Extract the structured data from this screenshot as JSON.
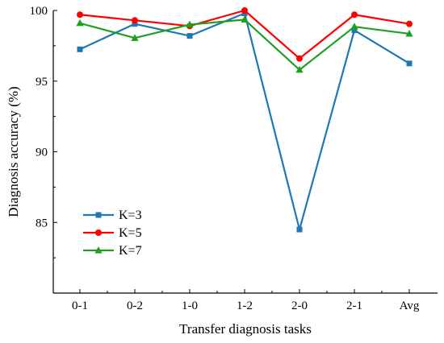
{
  "chart_data": {
    "type": "line",
    "title": "",
    "xlabel": "Transfer diagnosis tasks",
    "ylabel": "Diagnosis accuracy (%)",
    "categories": [
      "0-1",
      "0-2",
      "1-0",
      "1-2",
      "2-0",
      "2-1",
      "Avg"
    ],
    "ylim": [
      80,
      100
    ],
    "yticks": [
      "85",
      "90",
      "95",
      "100"
    ],
    "grid": false,
    "legend_position": "lower-left",
    "series": [
      {
        "name": "K=3",
        "color": "#1f77b4",
        "marker": "square",
        "values": [
          97.25,
          99.05,
          98.2,
          99.8,
          84.5,
          98.6,
          96.25
        ]
      },
      {
        "name": "K=5",
        "color": "#ff0000",
        "marker": "circle",
        "values": [
          99.7,
          99.3,
          98.9,
          100.0,
          96.6,
          99.7,
          99.05
        ]
      },
      {
        "name": "K=7",
        "color": "#1ea01e",
        "marker": "triangle",
        "values": [
          99.1,
          98.05,
          99.0,
          99.35,
          95.8,
          98.85,
          98.35
        ]
      }
    ]
  }
}
